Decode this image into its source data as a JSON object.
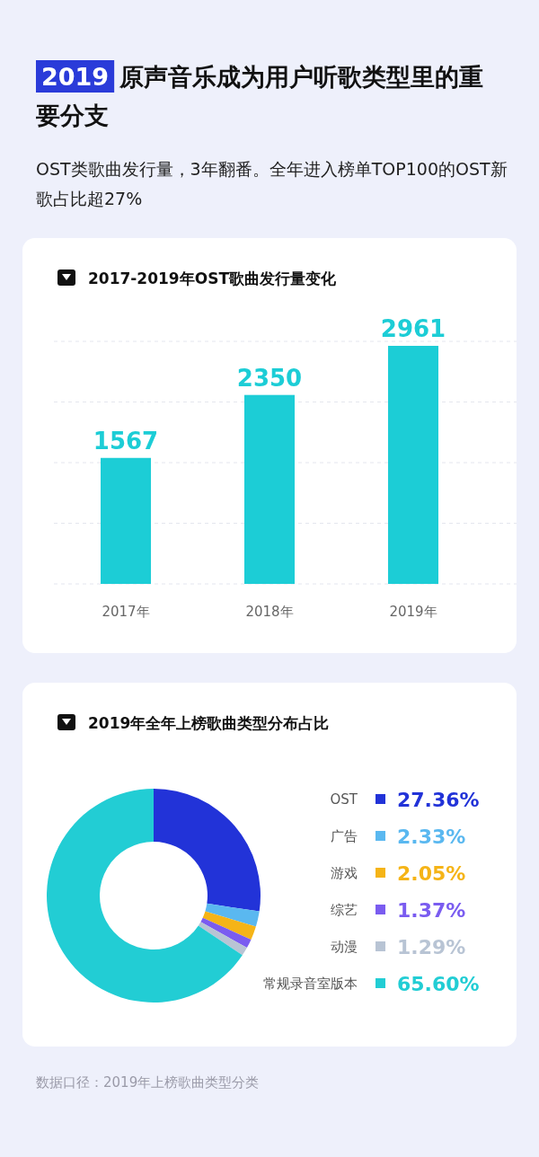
{
  "chart_data": [
    {
      "type": "other",
      "title": "2019 原声音乐成为用户听歌类型里的重要分支",
      "subtitle": "OST类歌曲发行量，3年翻番。全年进入榜单TOP100的OST新歌占比超27%"
    },
    {
      "type": "bar",
      "title": "2017-2019年OST歌曲发行量变化",
      "categories": [
        "2017年",
        "2018年",
        "2019年"
      ],
      "values": [
        1567,
        2350,
        2961
      ],
      "color": "#1ccdd6",
      "data_labels": true,
      "grid": "y",
      "tick_labels": "x"
    },
    {
      "type": "donut",
      "title": "2019年全年上榜歌曲类型分布占比",
      "categories": [
        "OST",
        "广告",
        "游戏",
        "综艺",
        "动漫",
        "常规录音室版本"
      ],
      "values": [
        27.36,
        2.33,
        2.05,
        1.37,
        1.29,
        65.6
      ],
      "colors": [
        "#2233d8",
        "#5ab8f0",
        "#f5b417",
        "#7a5cf0",
        "#b8c4d4",
        "#22cdd4"
      ],
      "value_labels": [
        "27.36%",
        "2.33%",
        "2.05%",
        "1.37%",
        "1.29%",
        "65.60%"
      ],
      "legend": "right",
      "annotations": [
        "数据口径：2019年上榜歌曲类型分类"
      ]
    }
  ]
}
